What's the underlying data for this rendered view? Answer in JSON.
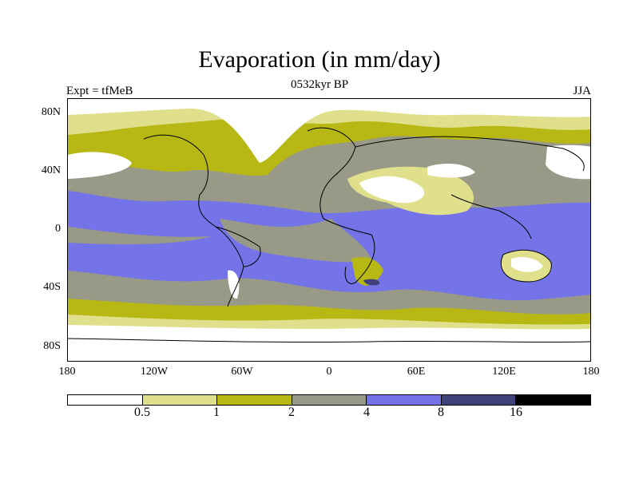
{
  "title": "Evaporation (in mm/day)",
  "subtitle": "0532kyr BP",
  "left_label": "Expt = tfMeB",
  "right_label": "JJA",
  "y_ticks": [
    "80N",
    "40N",
    "0",
    "40S",
    "80S"
  ],
  "x_ticks": [
    "180",
    "120W",
    "60W",
    "0",
    "60E",
    "120E",
    "180"
  ],
  "colorbar": {
    "levels": [
      "0.5",
      "1",
      "2",
      "4",
      "8",
      "16"
    ],
    "colors": [
      "#ffffff",
      "#e0e08c",
      "#b8b814",
      "#999988",
      "#7474e8",
      "#40407a",
      "#000000"
    ]
  },
  "colors": {
    "lt05": "#ffffff",
    "c05_1": "#e0e08c",
    "c1_2": "#b8b814",
    "c2_4": "#999988",
    "c4_8": "#7474e8",
    "c8_16": "#40407a",
    "gt16": "#000000"
  }
}
